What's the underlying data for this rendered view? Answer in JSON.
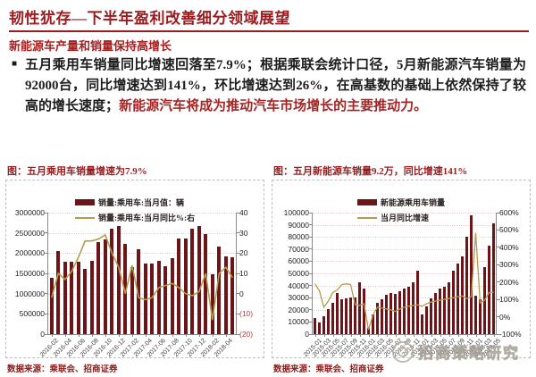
{
  "header": {
    "title": "韧性犹存—下半年盈利改善细分领域展望",
    "subtitle": "新能源车产量和销量保持高增长"
  },
  "body": {
    "bullet": "■",
    "text_black": "五月乘用车销量同比增速回落至7.9%；根据乘联会统计口径，5月新能源汽车销量为92000台，同比增速达到141%，环比增速达到26%，在高基数的基础上依然保持了较高的增长速度；",
    "text_red": "新能源汽车将成为推动汽车市场增长的主要推动力。"
  },
  "watermark": "招商策略研究",
  "colors": {
    "bar": "#6d1418",
    "line": "#b49c4e",
    "title_red": "#9a1b1e",
    "body_red": "#a52525",
    "negative_tick_red": "#c43434"
  },
  "chart_data": [
    {
      "type": "bar",
      "title": "图：五月乘用车销量增速为7.9%",
      "legend": [
        "销量:乘用车:当月值：辆",
        "销量:乘用车:当月同比%:右"
      ],
      "source": "数据来源：乘联会、招商证券",
      "x": [
        "2016-02",
        "2016-03",
        "2016-04",
        "2016-05",
        "2016-06",
        "2016-07",
        "2016-08",
        "2016-09",
        "2016-10",
        "2016-11",
        "2016-12",
        "2017-01",
        "2017-02",
        "2017-03",
        "2017-04",
        "2017-05",
        "2017-06",
        "2017-07",
        "2017-08",
        "2017-09",
        "2017-10",
        "2017-11",
        "2017-12",
        "2018-01",
        "2018-02",
        "2018-03",
        "2018-04",
        "2018-05"
      ],
      "x_tick_labels": [
        "2016-02",
        "2016-04",
        "2016-06",
        "2016-08",
        "2016-10",
        "2016-12",
        "2017-02",
        "2017-04",
        "2017-06",
        "2017-08",
        "2017-10",
        "2017-12",
        "2018-02",
        "2018-04"
      ],
      "bars": [
        1390000,
        2060000,
        1780000,
        1790000,
        1780000,
        1610000,
        1800000,
        2280000,
        2340000,
        2600000,
        2670000,
        2230000,
        1650000,
        2090000,
        1740000,
        1740000,
        1820000,
        1680000,
        1870000,
        2360000,
        2360000,
        2600000,
        2660000,
        2460000,
        1480000,
        2170000,
        1910000,
        1890000
      ],
      "line": [
        -2,
        10,
        7,
        11,
        18,
        26,
        26,
        27,
        29,
        20,
        13,
        0,
        14,
        -2,
        -3,
        -2,
        3,
        4,
        5,
        3,
        0,
        -1,
        1,
        10,
        -13,
        10,
        13,
        7.9
      ],
      "left_axis": {
        "min": 0,
        "max": 3000000,
        "tick_values": [
          0,
          500000,
          1000000,
          1500000,
          2000000,
          2500000,
          3000000
        ],
        "tick_labels": [
          "0",
          "500000",
          "1000000",
          "1500000",
          "2000000",
          "2500000",
          "3000000"
        ]
      },
      "right_axis": {
        "min": -20,
        "max": 40,
        "tick_values": [
          -20,
          -10,
          0,
          10,
          20,
          30,
          40
        ],
        "tick_labels": [
          "(20)",
          "(10)",
          "0",
          "10",
          "20",
          "30",
          "40"
        ]
      },
      "grid": true,
      "legend_position": "top-center"
    },
    {
      "type": "bar",
      "title": "图：五月新能源车销量9.2万，同比增速141%",
      "legend": [
        "新能源乘用车销量",
        "当月同比增速"
      ],
      "source": "数据来源：乘联会、招商证券",
      "x": [
        "2015-01",
        "2015-02",
        "2015-03",
        "2015-04",
        "2015-05",
        "2015-06",
        "2015-07",
        "2015-08",
        "2015-09",
        "2015-10",
        "2015-11",
        "2015-12",
        "2016-01",
        "2016-02",
        "2016-03",
        "2016-04",
        "2016-05",
        "2016-06",
        "2016-07",
        "2016-08",
        "2016-09",
        "2016-10",
        "2016-11",
        "2016-12",
        "2017-01",
        "2017-02",
        "2017-03",
        "2017-04",
        "2017-05",
        "2017-06",
        "2017-07",
        "2017-08",
        "2017-09",
        "2017-10",
        "2017-11",
        "2017-12",
        "2018-01",
        "2018-02",
        "2018-03",
        "2018-04",
        "2018-05"
      ],
      "x_tick_labels": [
        "2015-01",
        "2015-03",
        "2015-05",
        "2015-07",
        "2015-09",
        "2015-11",
        "2016-01",
        "2016-03",
        "2016-05",
        "2016-07",
        "2016-09",
        "2016-11",
        "2017-01",
        "2017-03",
        "2017-05",
        "2017-07",
        "2017-09",
        "2017-11",
        "2018-01",
        "2018-03",
        "2018-05"
      ],
      "bars": [
        13500,
        9500,
        14500,
        20500,
        26000,
        34000,
        29000,
        29500,
        30000,
        30500,
        43000,
        37500,
        5500,
        16500,
        25500,
        29000,
        32000,
        34000,
        33000,
        35500,
        37500,
        39000,
        42500,
        52500,
        16000,
        22500,
        29500,
        34000,
        37500,
        39000,
        42500,
        52500,
        58000,
        64000,
        80500,
        98000,
        31500,
        29000,
        55500,
        72500,
        91500
      ],
      "line": [
        190,
        150,
        55,
        90,
        140,
        155,
        185,
        190,
        185,
        70,
        65,
        75,
        -75,
        10,
        55,
        50,
        45,
        40,
        30,
        45,
        55,
        60,
        65,
        70,
        60,
        75,
        85,
        90,
        95,
        100,
        105,
        110,
        115,
        120,
        105,
        115,
        483,
        80,
        95,
        140,
        141
      ],
      "left_axis": {
        "min": 0,
        "max": 100000,
        "tick_values": [
          0,
          10000,
          20000,
          30000,
          40000,
          50000,
          60000,
          70000,
          80000,
          90000,
          100000
        ],
        "tick_labels": [
          "0",
          "10000",
          "20000",
          "30000",
          "40000",
          "50000",
          "60000",
          "70000",
          "80000",
          "90000",
          "100000"
        ]
      },
      "right_axis": {
        "min": -100,
        "max": 600,
        "tick_values": [
          -100,
          0,
          100,
          200,
          300,
          400,
          500,
          600
        ],
        "tick_labels": [
          "-100%",
          "0%",
          "100%",
          "200%",
          "300%",
          "400%",
          "500%",
          "600%"
        ]
      },
      "grid": true,
      "legend_position": "top-center"
    }
  ]
}
